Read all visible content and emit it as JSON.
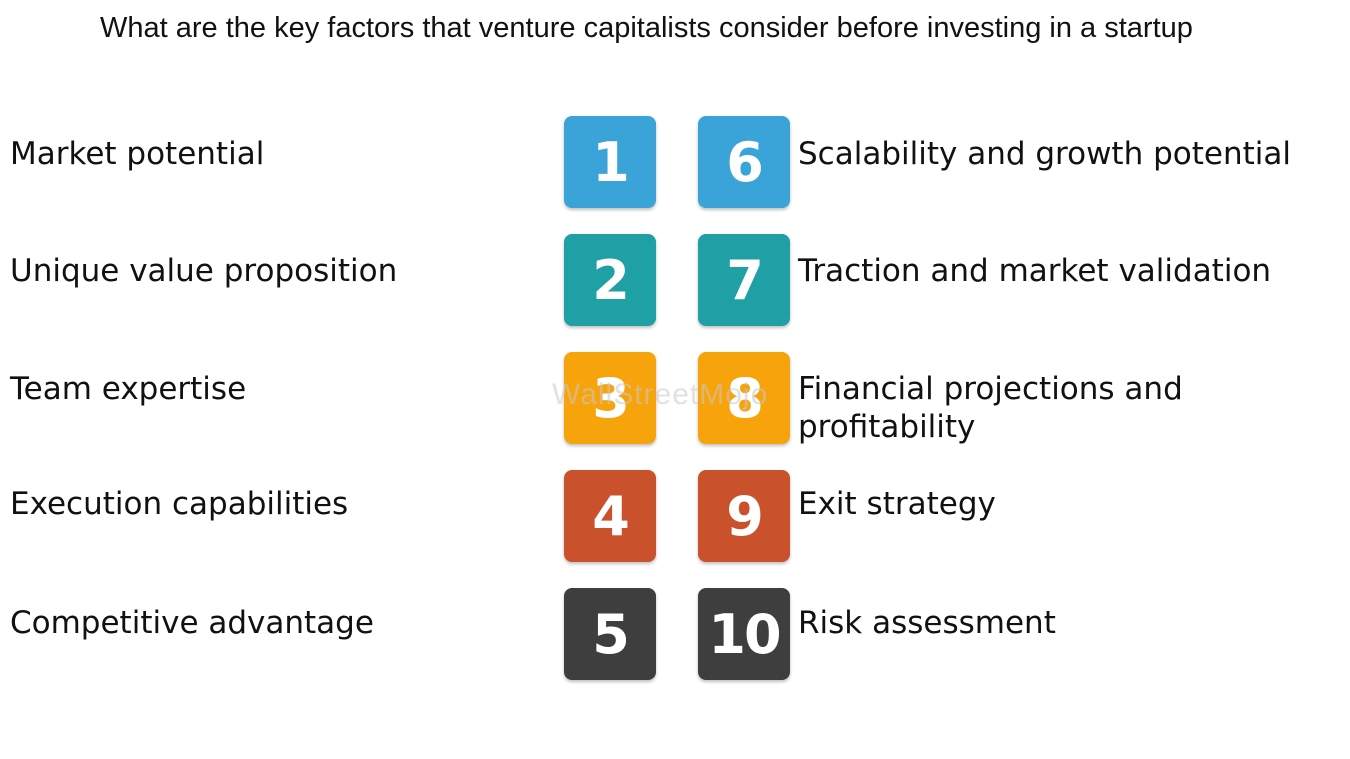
{
  "title": "What are the key factors that venture capitalists consider before investing in a startup",
  "watermark": "WallStreetMojo",
  "colors": {
    "row1": "#3aa4d9",
    "row2": "#1ea0a4",
    "row3": "#f7a30c",
    "row4": "#c9512c",
    "row5": "#3e3e3e"
  },
  "factors": [
    {
      "number": "1",
      "label": "Market potential"
    },
    {
      "number": "2",
      "label": "Unique value proposition"
    },
    {
      "number": "3",
      "label": "Team expertise"
    },
    {
      "number": "4",
      "label": "Execution capabilities"
    },
    {
      "number": "5",
      "label": "Competitive advantage"
    },
    {
      "number": "6",
      "label": "Scalability and growth potential"
    },
    {
      "number": "7",
      "label": "Traction and market validation"
    },
    {
      "number": "8",
      "label": "Financial projections and\nprofitability"
    },
    {
      "number": "9",
      "label": "Exit strategy"
    },
    {
      "number": "10",
      "label": "Risk assessment"
    }
  ]
}
